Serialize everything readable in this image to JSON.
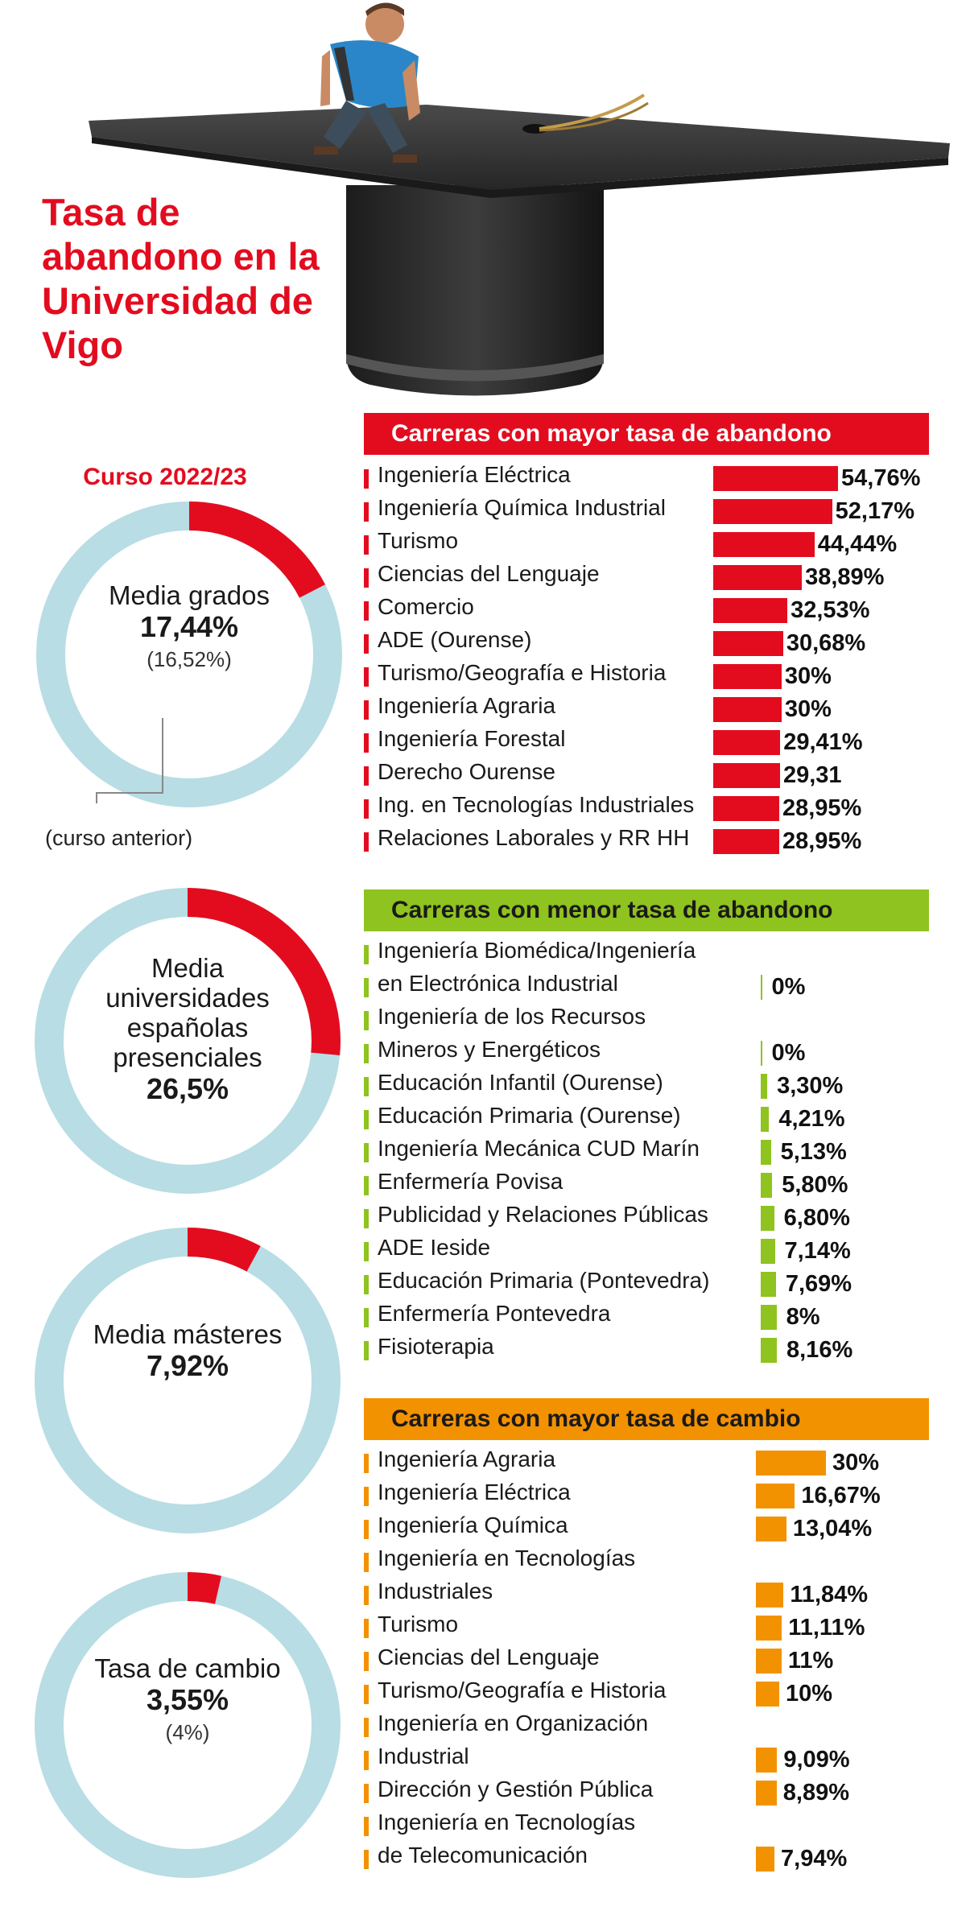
{
  "title": "Tasa de abandono en la Universidad de Vigo",
  "course": "Curso 2022/23",
  "previous_label": "(curso anterior)",
  "colors": {
    "red": "#e30c1f",
    "green": "#8fc31f",
    "orange": "#f39200",
    "ring": "#b8dde4"
  },
  "donuts": [
    {
      "label": "Media grados",
      "value_text": "17,44%",
      "value": 17.44,
      "previous": "(16,52%)"
    },
    {
      "label": "Media universidades españolas presenciales",
      "value_text": "26,5%",
      "value": 26.5
    },
    {
      "label": "Media másteres",
      "value_text": "7,92%",
      "value": 7.92
    },
    {
      "label": "Tasa de cambio",
      "value_text": "3,55%",
      "value": 3.55,
      "previous": "(4%)"
    }
  ],
  "chart_data": [
    {
      "type": "bar",
      "title": "Carreras con mayor tasa de abandono",
      "categories": [
        "Ingeniería Eléctrica",
        "Ingeniería Química Industrial",
        "Turismo",
        "Ciencias del Lenguaje",
        "Comercio",
        "ADE (Ourense)",
        "Turismo/Geografía e Historia",
        "Ingeniería Agraria",
        "Ingeniería Forestal",
        "Derecho Ourense",
        "Ing. en Tecnologías Industriales",
        "Relaciones Laborales y RR HH"
      ],
      "values": [
        54.76,
        52.17,
        44.44,
        38.89,
        32.53,
        30.68,
        30,
        30,
        29.41,
        29.31,
        28.95,
        28.95
      ],
      "labels": [
        "54,76%",
        "52,17%",
        "44,44%",
        "38,89%",
        "32,53%",
        "30,68%",
        "30%",
        "30%",
        "29,41%",
        "29,31",
        "28,95%",
        "28,95%"
      ],
      "color": "#e30c1f"
    },
    {
      "type": "bar",
      "title": "Carreras con menor tasa de abandono",
      "categories": [
        "Ingeniería Biomédica/Ingeniería en Electrónica Industrial",
        "Ingeniería de los Recursos Mineros y Energéticos",
        "Educación Infantil (Ourense)",
        "Educación Primaria (Ourense)",
        "Ingeniería Mecánica CUD Marín",
        "Enfermería Povisa",
        "Publicidad y Relaciones Públicas",
        "ADE Ieside",
        "Educación Primaria (Pontevedra)",
        "Enfermería Pontevedra",
        "Fisioterapia"
      ],
      "values": [
        0,
        0,
        3.3,
        4.21,
        5.13,
        5.8,
        6.8,
        7.14,
        7.69,
        8,
        8.16
      ],
      "labels": [
        "0%",
        "0%",
        "3,30%",
        "4,21%",
        "5,13%",
        "5,80%",
        "6,80%",
        "7,14%",
        "7,69%",
        "8%",
        "8,16%"
      ],
      "color": "#8fc31f"
    },
    {
      "type": "bar",
      "title": "Carreras con mayor tasa de cambio",
      "categories": [
        "Ingeniería Agraria",
        "Ingeniería Eléctrica",
        "Ingeniería Química",
        "Ingeniería en Tecnologías Industriales",
        "Turismo",
        "Ciencias del Lenguaje",
        "Turismo/Geografía e Historia",
        "Ingeniería en Organización Industrial",
        "Dirección y Gestión Pública",
        "Ingeniería en Tecnologías de Telecomunicación"
      ],
      "values": [
        30,
        16.67,
        13.04,
        11.84,
        11.11,
        11,
        10,
        9.09,
        8.89,
        7.94
      ],
      "labels": [
        "30%",
        "16,67%",
        "13,04%",
        "11,84%",
        "11,11%",
        "11%",
        "10%",
        "9,09%",
        "8,89%",
        "7,94%"
      ],
      "color": "#f39200"
    }
  ]
}
